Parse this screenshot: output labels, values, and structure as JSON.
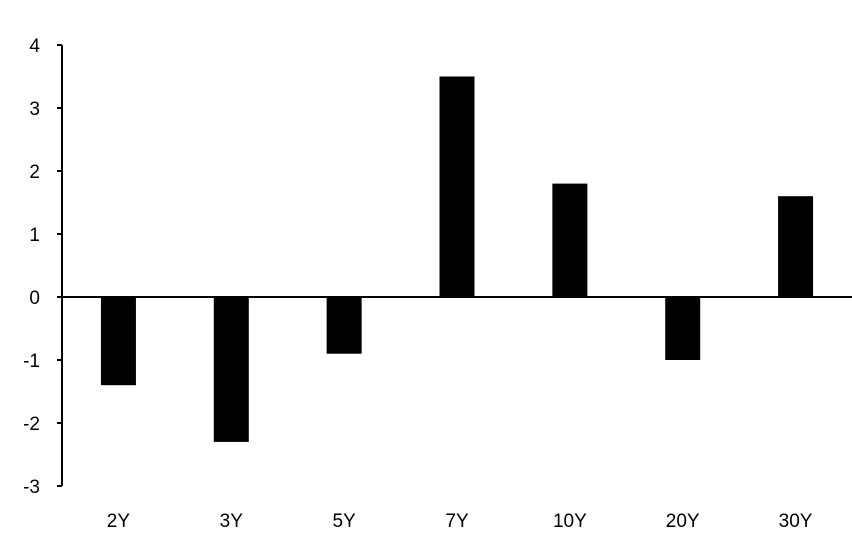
{
  "chart_data": {
    "type": "bar",
    "title": "",
    "xlabel": "",
    "ylabel": "",
    "categories": [
      "2Y",
      "3Y",
      "5Y",
      "7Y",
      "10Y",
      "20Y",
      "30Y"
    ],
    "values": [
      -1.4,
      -2.3,
      -0.9,
      3.5,
      1.8,
      -1.0,
      1.6
    ],
    "ylim": [
      -3,
      4
    ],
    "yticks": [
      4,
      3,
      2,
      1,
      0,
      -1,
      -2,
      -3
    ],
    "grid": false,
    "legend": "none",
    "bar_color": "#000000"
  }
}
